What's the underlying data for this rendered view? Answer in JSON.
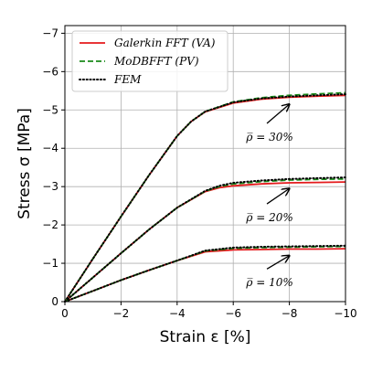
{
  "chart_data": {
    "type": "line",
    "xlabel": "Strain ε [%]",
    "ylabel": "Stress σ [MPa]",
    "xlim": [
      0,
      -10
    ],
    "ylim": [
      0,
      -7.2
    ],
    "xticks": [
      0,
      -2,
      -4,
      -6,
      -8,
      -10
    ],
    "xtick_labels": [
      "0",
      "−2",
      "−4",
      "−6",
      "−8",
      "−10"
    ],
    "yticks": [
      0,
      -1,
      -2,
      -3,
      -4,
      -5,
      -6,
      -7
    ],
    "ytick_labels": [
      "0",
      "−1",
      "−2",
      "−3",
      "−4",
      "−5",
      "−6",
      "−7"
    ],
    "grid": true,
    "legend_position": "top-left",
    "legend": [
      {
        "label": "Galerkin FFT (VA)",
        "color": "#e41a1c",
        "style": "solid"
      },
      {
        "label": "MoDBFFT (PV)",
        "color": "#1a8a1a",
        "style": "dashed"
      },
      {
        "label": "FEM",
        "color": "#000000",
        "style": "dotted"
      }
    ],
    "groups": [
      {
        "annotation": "ρ̅ = 30%",
        "series": [
          {
            "method": "Galerkin FFT (VA)",
            "x": [
              0,
              -1,
              -2,
              -3,
              -4,
              -4.5,
              -5,
              -6,
              -7,
              -8,
              -9,
              -10
            ],
            "y": [
              0,
              -1.12,
              -2.22,
              -3.3,
              -4.32,
              -4.7,
              -4.95,
              -5.18,
              -5.28,
              -5.33,
              -5.36,
              -5.38
            ]
          },
          {
            "method": "MoDBFFT (PV)",
            "x": [
              0,
              -1,
              -2,
              -3,
              -4,
              -4.5,
              -5,
              -6,
              -7,
              -8,
              -9,
              -10
            ],
            "y": [
              0,
              -1.12,
              -2.22,
              -3.3,
              -4.32,
              -4.7,
              -4.96,
              -5.21,
              -5.32,
              -5.38,
              -5.42,
              -5.45
            ]
          },
          {
            "method": "FEM",
            "x": [
              0,
              -1,
              -2,
              -3,
              -4,
              -4.5,
              -5,
              -6,
              -7,
              -8,
              -9,
              -10
            ],
            "y": [
              0,
              -1.12,
              -2.22,
              -3.3,
              -4.32,
              -4.7,
              -4.96,
              -5.2,
              -5.3,
              -5.35,
              -5.38,
              -5.41
            ]
          }
        ]
      },
      {
        "annotation": "ρ̅ = 20%",
        "series": [
          {
            "method": "Galerkin FFT (VA)",
            "x": [
              0,
              -1,
              -2,
              -3,
              -4,
              -5,
              -5.5,
              -6,
              -7,
              -8,
              -9,
              -10
            ],
            "y": [
              0,
              -0.63,
              -1.26,
              -1.88,
              -2.45,
              -2.87,
              -2.97,
              -3.02,
              -3.07,
              -3.1,
              -3.11,
              -3.12
            ]
          },
          {
            "method": "MoDBFFT (PV)",
            "x": [
              0,
              -1,
              -2,
              -3,
              -4,
              -5,
              -5.5,
              -6,
              -7,
              -8,
              -9,
              -10
            ],
            "y": [
              0,
              -0.63,
              -1.26,
              -1.88,
              -2.45,
              -2.88,
              -3.0,
              -3.07,
              -3.13,
              -3.17,
              -3.19,
              -3.2
            ]
          },
          {
            "method": "FEM",
            "x": [
              0,
              -1,
              -2,
              -3,
              -4,
              -5,
              -5.5,
              -6,
              -7,
              -8,
              -9,
              -10
            ],
            "y": [
              0,
              -0.63,
              -1.26,
              -1.88,
              -2.45,
              -2.89,
              -3.02,
              -3.1,
              -3.16,
              -3.2,
              -3.22,
              -3.24
            ]
          }
        ]
      },
      {
        "annotation": "ρ̅ = 10%",
        "series": [
          {
            "method": "Galerkin FFT (VA)",
            "x": [
              0,
              -1,
              -2,
              -3,
              -4,
              -5,
              -6,
              -7,
              -8,
              -9,
              -10
            ],
            "y": [
              0,
              -0.28,
              -0.56,
              -0.82,
              -1.07,
              -1.3,
              -1.35,
              -1.36,
              -1.37,
              -1.37,
              -1.38
            ]
          },
          {
            "method": "MoDBFFT (PV)",
            "x": [
              0,
              -1,
              -2,
              -3,
              -4,
              -5,
              -6,
              -7,
              -8,
              -9,
              -10
            ],
            "y": [
              0,
              -0.28,
              -0.56,
              -0.82,
              -1.07,
              -1.32,
              -1.39,
              -1.41,
              -1.42,
              -1.43,
              -1.44
            ]
          },
          {
            "method": "FEM",
            "x": [
              0,
              -1,
              -2,
              -3,
              -4,
              -5,
              -6,
              -7,
              -8,
              -9,
              -10
            ],
            "y": [
              0,
              -0.28,
              -0.56,
              -0.82,
              -1.07,
              -1.33,
              -1.41,
              -1.43,
              -1.44,
              -1.45,
              -1.46
            ]
          }
        ]
      }
    ],
    "annotations": [
      {
        "text": "ρ̅ = 30%",
        "text_at": [
          -7.3,
          -4.2
        ],
        "arrow_from": [
          -7.2,
          -4.65
        ],
        "arrow_to": [
          -8.0,
          -5.15
        ]
      },
      {
        "text": "ρ̅ = 20%",
        "text_at": [
          -7.3,
          -2.1
        ],
        "arrow_from": [
          -7.2,
          -2.55
        ],
        "arrow_to": [
          -8.0,
          -2.95
        ]
      },
      {
        "text": "ρ̅ = 10%",
        "text_at": [
          -7.3,
          -0.4
        ],
        "arrow_from": [
          -7.2,
          -0.85
        ],
        "arrow_to": [
          -8.0,
          -1.2
        ]
      }
    ]
  }
}
